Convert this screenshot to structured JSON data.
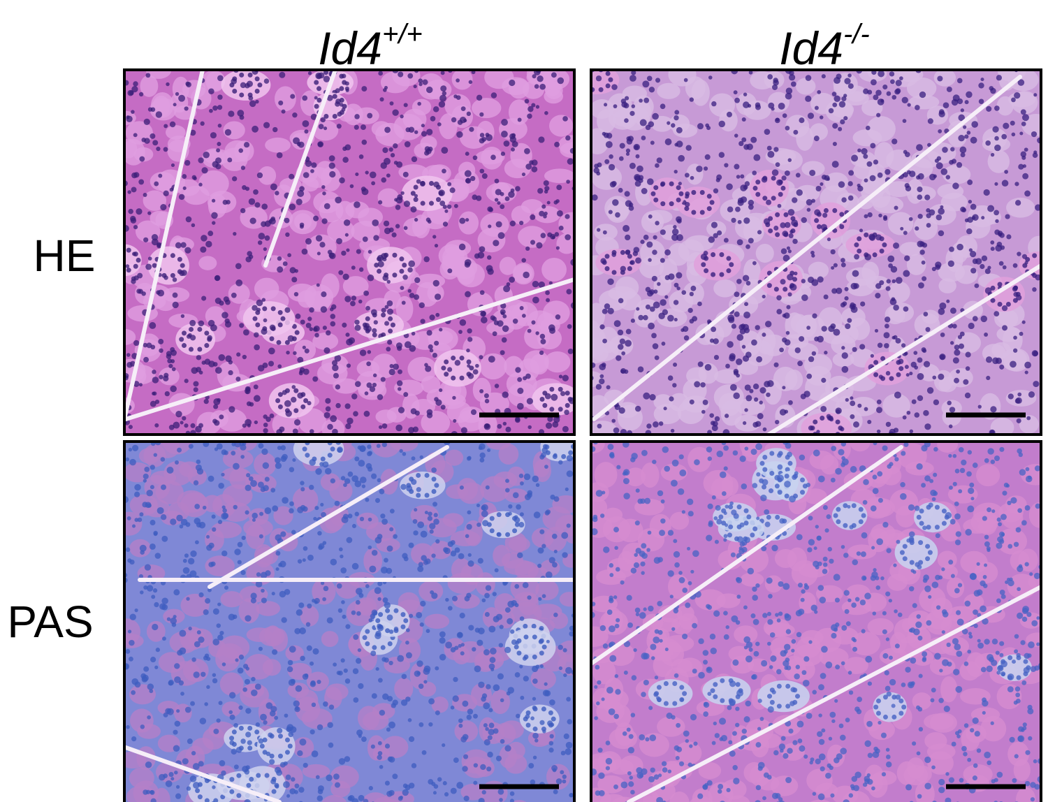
{
  "columns": [
    {
      "gene": "Id4",
      "genotype": "+/+"
    },
    {
      "gene": "Id4",
      "genotype": "-/-"
    }
  ],
  "rows": [
    {
      "stain": "HE"
    },
    {
      "stain": "PAS"
    }
  ]
}
